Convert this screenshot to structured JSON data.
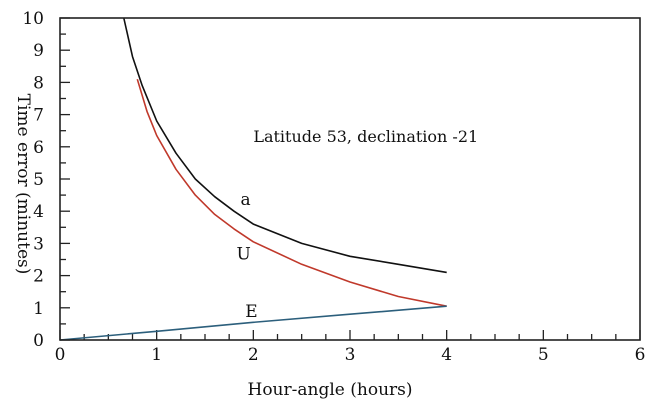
{
  "chart_data": {
    "type": "line",
    "title": "",
    "annotation": "Latitude 53, declination -21",
    "xlabel": "Hour-angle (hours)",
    "ylabel": "Time error (minutes)",
    "xlim": [
      0,
      6
    ],
    "ylim": [
      0,
      10
    ],
    "x_ticks": [
      0,
      1,
      2,
      3,
      4,
      5,
      6
    ],
    "y_ticks": [
      0,
      1,
      2,
      3,
      4,
      5,
      6,
      7,
      8,
      9,
      10
    ],
    "x_tick_labels": [
      "0",
      "1",
      "2",
      "3",
      "4",
      "5",
      "6"
    ],
    "y_tick_labels": [
      "0",
      "1",
      "2",
      "3",
      "4",
      "5",
      "6",
      "7",
      "8",
      "9",
      "10"
    ],
    "x_minor_step": 0.25,
    "y_minor_step": 0.5,
    "grid": false,
    "legend": "none",
    "series": [
      {
        "name": "a",
        "color": "#111111",
        "x": [
          0.66,
          0.75,
          0.85,
          1.0,
          1.2,
          1.4,
          1.6,
          1.8,
          2.0,
          2.5,
          3.0,
          3.5,
          4.0
        ],
        "y": [
          10.0,
          8.8,
          7.9,
          6.8,
          5.8,
          5.0,
          4.45,
          4.0,
          3.6,
          3.0,
          2.6,
          2.35,
          2.1
        ]
      },
      {
        "name": "U",
        "color": "#c0392b",
        "x": [
          0.8,
          0.9,
          1.0,
          1.2,
          1.4,
          1.6,
          1.8,
          2.0,
          2.5,
          3.0,
          3.5,
          4.0
        ],
        "y": [
          8.1,
          7.1,
          6.35,
          5.3,
          4.5,
          3.9,
          3.45,
          3.05,
          2.35,
          1.8,
          1.35,
          1.05
        ]
      },
      {
        "name": "E",
        "color": "#2c5f7c",
        "x": [
          0.0,
          1.0,
          2.0,
          3.0,
          4.0
        ],
        "y": [
          0.0,
          0.27,
          0.55,
          0.8,
          1.05
        ]
      }
    ]
  }
}
